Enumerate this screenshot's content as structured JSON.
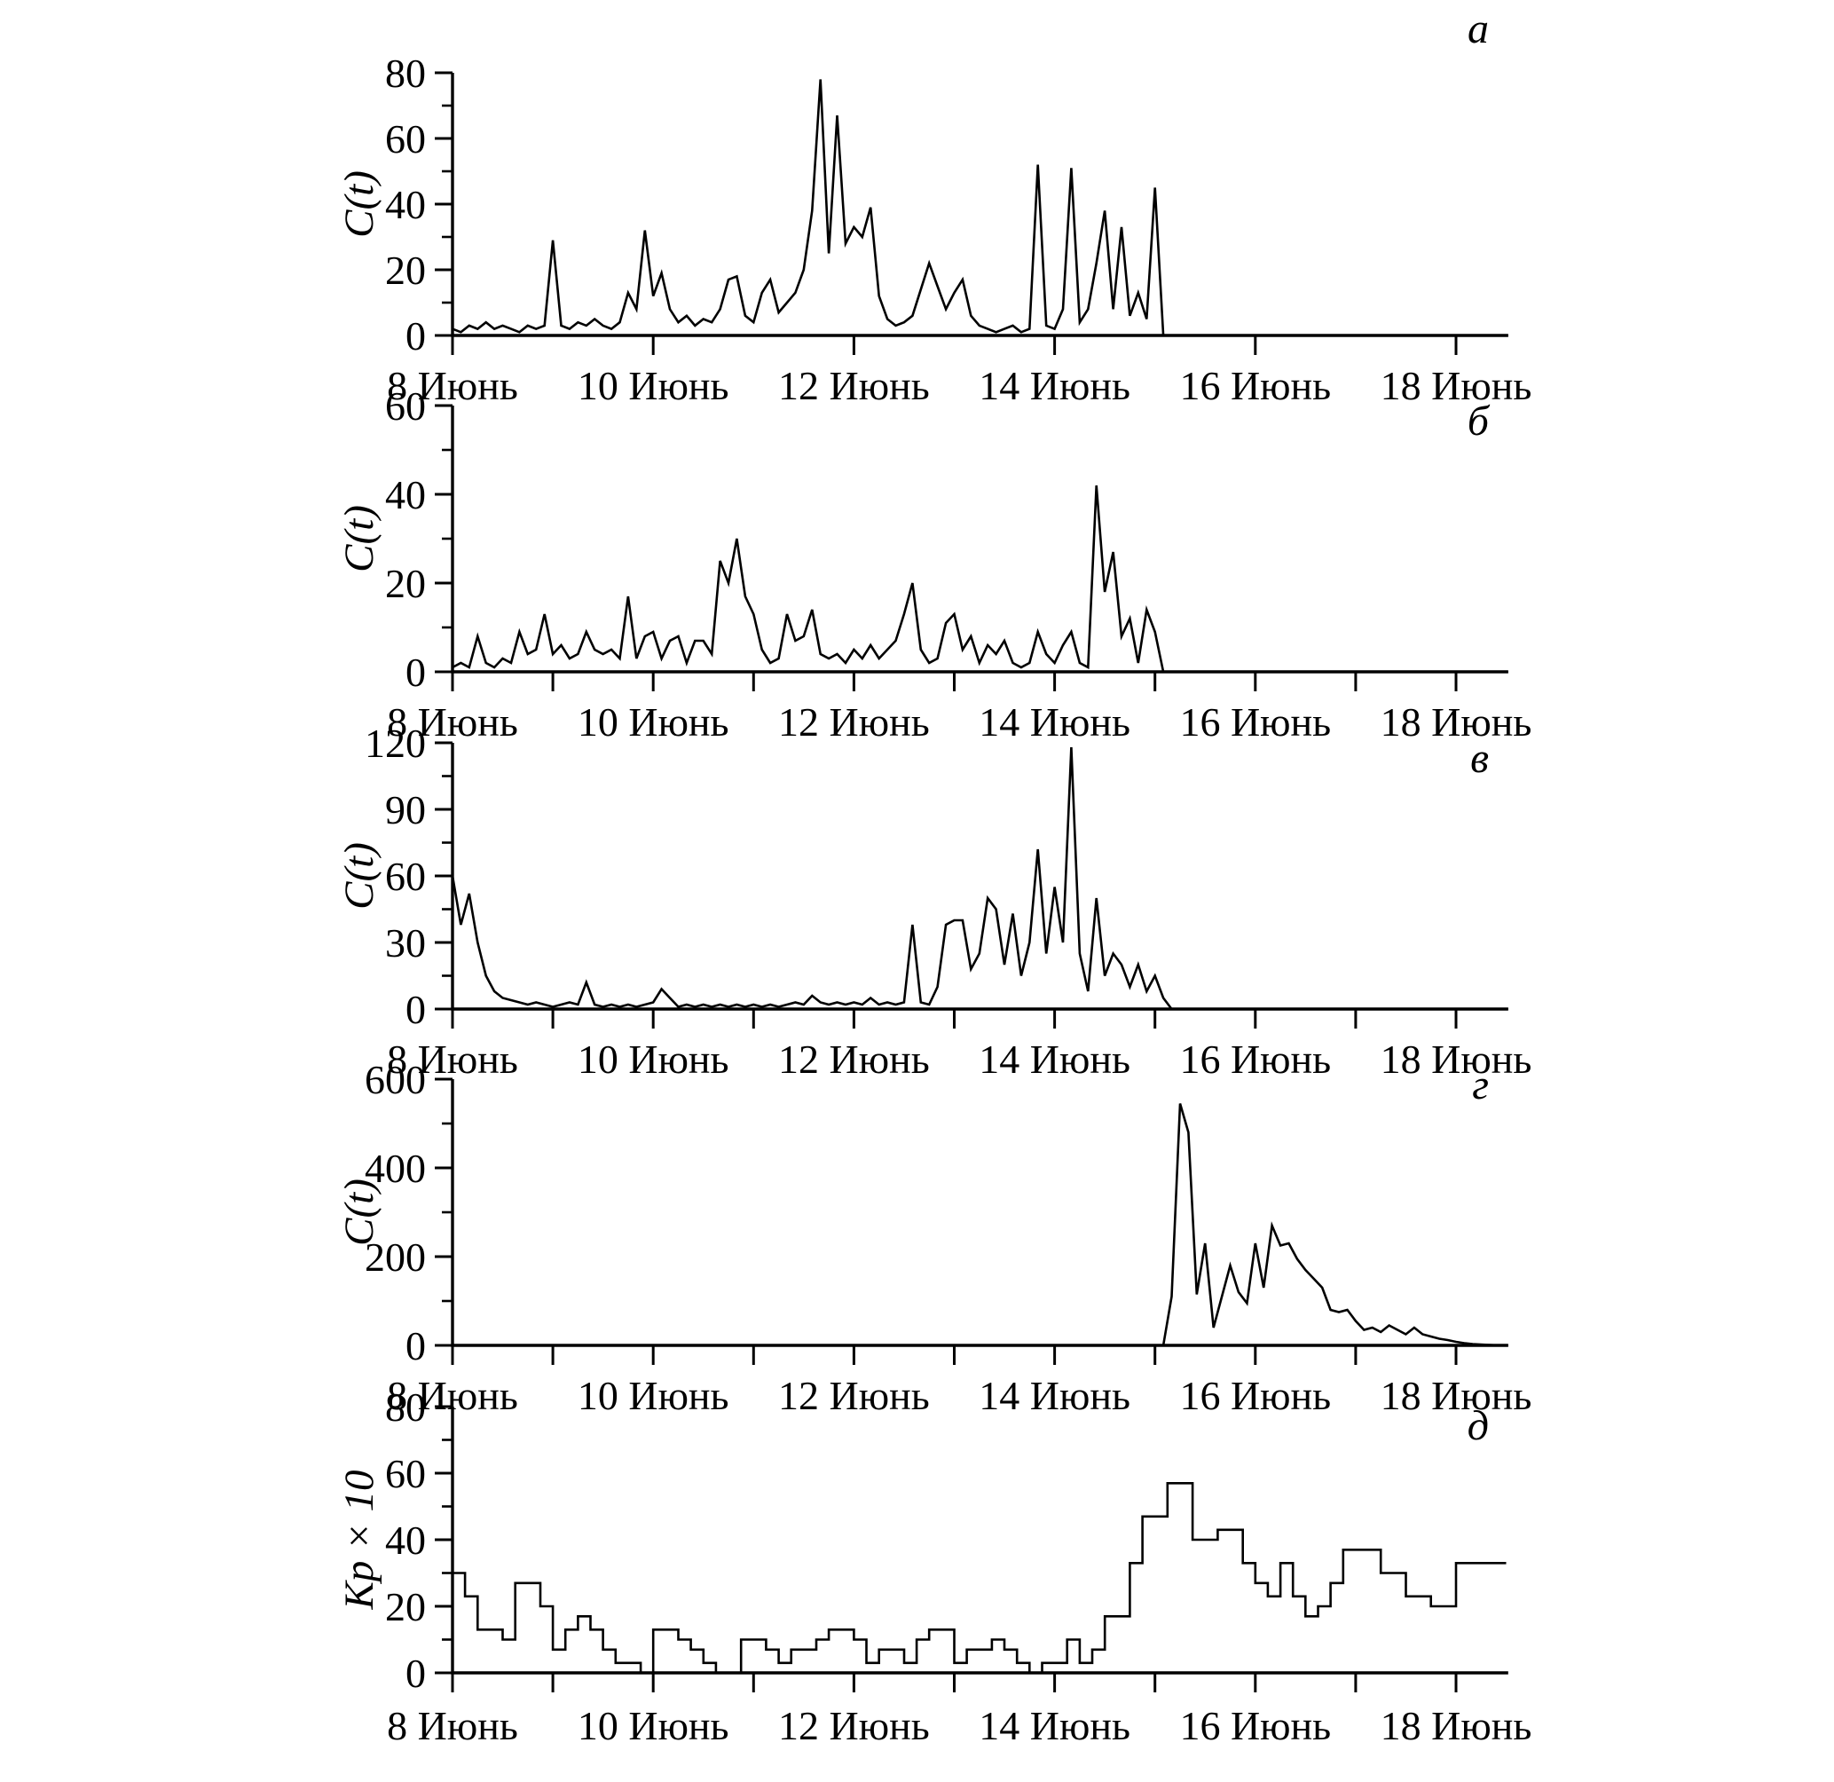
{
  "chart_data": {
    "type": "line",
    "title": "",
    "layout": {
      "description": "five stacked time-series panels sharing one x axis range",
      "grid": "off",
      "line_color": "#000000",
      "background": "#ffffff"
    },
    "x_axis": {
      "range_days": [
        8,
        18.52
      ],
      "month": "Июнь",
      "major_ticks": [
        {
          "day": 8,
          "label": "8 Июнь"
        },
        {
          "day": 10,
          "label": "10 Июнь"
        },
        {
          "day": 12,
          "label": "12 Июнь"
        },
        {
          "day": 14,
          "label": "14 Июнь"
        },
        {
          "day": 16,
          "label": "16 Июнь"
        },
        {
          "day": 18,
          "label": "18 Июнь"
        }
      ]
    },
    "panels": [
      {
        "id": "a",
        "letter": "а",
        "ylabel": "C(t)",
        "series_type": "line",
        "ylim": [
          0,
          80
        ],
        "y_major_ticks": [
          0,
          20,
          40,
          60,
          80
        ],
        "y_minor_step": 10,
        "start_day": 8,
        "step_days": 0.0833333,
        "zero_tail": true,
        "values": [
          2,
          1,
          3,
          2,
          4,
          2,
          3,
          2,
          1,
          3,
          2,
          3,
          29,
          3,
          2,
          4,
          3,
          5,
          3,
          2,
          4,
          13,
          8,
          32,
          12,
          19,
          8,
          4,
          6,
          3,
          5,
          4,
          8,
          17,
          18,
          6,
          4,
          13,
          17,
          7,
          10,
          13,
          20,
          38,
          78,
          25,
          67,
          28,
          33,
          30,
          39,
          12,
          5,
          3,
          4,
          6,
          14,
          22,
          15,
          8,
          13,
          17,
          6,
          3,
          2,
          1,
          2,
          3,
          1,
          2,
          52,
          3,
          2,
          8,
          51,
          4,
          8,
          22,
          38,
          8,
          33,
          6,
          13,
          5,
          45,
          0
        ]
      },
      {
        "id": "b",
        "letter": "б",
        "ylabel": "C(t)",
        "series_type": "line",
        "ylim": [
          0,
          60
        ],
        "y_major_ticks": [
          0,
          20,
          40,
          60
        ],
        "y_minor_step": 10,
        "start_day": 8,
        "step_days": 0.0833333,
        "zero_tail": true,
        "values": [
          1,
          2,
          1,
          8,
          2,
          1,
          3,
          2,
          9,
          4,
          5,
          13,
          4,
          6,
          3,
          4,
          9,
          5,
          4,
          5,
          3,
          17,
          3,
          8,
          9,
          3,
          7,
          8,
          2,
          7,
          7,
          4,
          25,
          20,
          30,
          17,
          13,
          5,
          2,
          3,
          13,
          7,
          8,
          14,
          4,
          3,
          4,
          2,
          5,
          3,
          6,
          3,
          5,
          7,
          13,
          20,
          5,
          2,
          3,
          11,
          13,
          5,
          8,
          2,
          6,
          4,
          7,
          2,
          1,
          2,
          9,
          4,
          2,
          6,
          9,
          2,
          1,
          42,
          18,
          27,
          8,
          12,
          2,
          14,
          9,
          0
        ]
      },
      {
        "id": "v",
        "letter": "в",
        "ylabel": "C(t)",
        "series_type": "line",
        "ylim": [
          0,
          120
        ],
        "y_major_ticks": [
          0,
          30,
          60,
          90,
          120
        ],
        "y_minor_step": 15,
        "start_day": 8,
        "step_days": 0.0833333,
        "zero_tail": true,
        "values": [
          60,
          38,
          52,
          30,
          15,
          8,
          5,
          4,
          3,
          2,
          3,
          2,
          1,
          2,
          3,
          2,
          12,
          2,
          1,
          2,
          1,
          2,
          1,
          2,
          3,
          9,
          5,
          1,
          2,
          1,
          2,
          1,
          2,
          1,
          2,
          1,
          2,
          1,
          2,
          1,
          2,
          3,
          2,
          6,
          3,
          2,
          3,
          2,
          3,
          2,
          5,
          2,
          3,
          2,
          3,
          38,
          3,
          2,
          10,
          38,
          40,
          40,
          18,
          25,
          50,
          45,
          20,
          43,
          15,
          30,
          72,
          25,
          55,
          30,
          118,
          25,
          8,
          50,
          15,
          25,
          20,
          10,
          20,
          8,
          15,
          5,
          0
        ]
      },
      {
        "id": "g",
        "letter": "г",
        "ylabel": "C(t)",
        "series_type": "line",
        "ylim": [
          0,
          600
        ],
        "y_major_ticks": [
          0,
          200,
          400,
          600
        ],
        "y_minor_step": 100,
        "start_day": 15.0833,
        "step_days": 0.0833333,
        "zero_lead": true,
        "zero_tail": true,
        "values": [
          0,
          110,
          545,
          480,
          115,
          230,
          40,
          110,
          180,
          120,
          95,
          230,
          130,
          270,
          225,
          230,
          195,
          170,
          150,
          130,
          80,
          75,
          80,
          55,
          35,
          40,
          30,
          45,
          35,
          25,
          40,
          25,
          20,
          15,
          12,
          8,
          5,
          3,
          2,
          1,
          0,
          0
        ]
      },
      {
        "id": "d",
        "letter": "д",
        "ylabel": "Kp × 10",
        "series_type": "step",
        "ylim": [
          0,
          80
        ],
        "y_major_ticks": [
          0,
          20,
          40,
          60,
          80
        ],
        "y_minor_step": 10,
        "start_day": 8,
        "step_days": 0.125,
        "zero_tail": false,
        "values": [
          30,
          23,
          13,
          13,
          10,
          27,
          27,
          20,
          7,
          13,
          17,
          13,
          7,
          3,
          3,
          0,
          13,
          13,
          10,
          7,
          3,
          0,
          0,
          10,
          10,
          7,
          3,
          7,
          7,
          10,
          13,
          13,
          10,
          3,
          7,
          7,
          3,
          10,
          13,
          13,
          3,
          7,
          7,
          10,
          7,
          3,
          0,
          3,
          3,
          10,
          3,
          7,
          17,
          17,
          33,
          47,
          47,
          57,
          57,
          40,
          40,
          43,
          43,
          33,
          27,
          23,
          33,
          23,
          17,
          20,
          27,
          37,
          37,
          37,
          30,
          30,
          23,
          23,
          20,
          20,
          33,
          33,
          33,
          33
        ]
      }
    ]
  }
}
